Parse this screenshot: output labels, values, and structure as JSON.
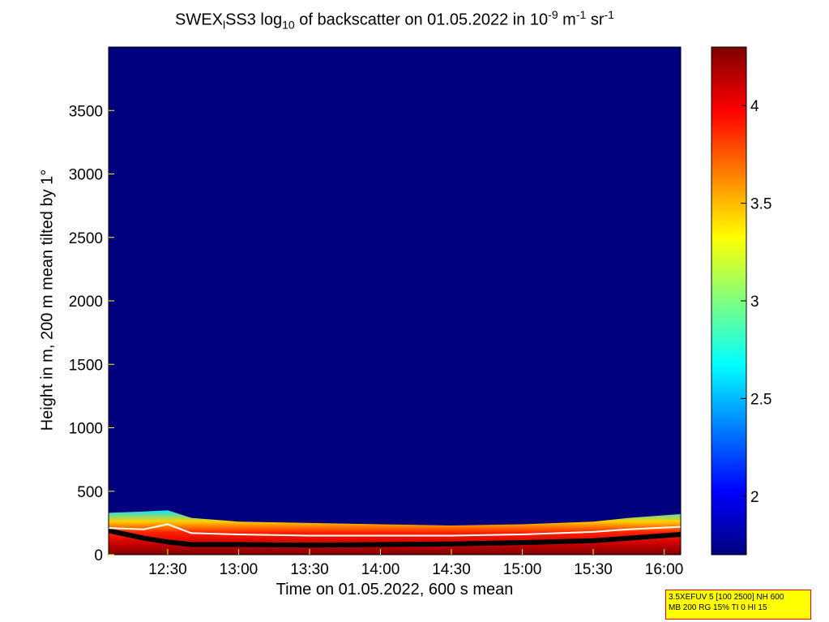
{
  "title": {
    "prefix": "SWEX",
    "sub1": "l",
    "part2": "SS3 log",
    "sub2": "10",
    "part3": " of backscatter on 01.05.2022 in 10",
    "sup1": "-9",
    "part4": " m",
    "sup2": "-1",
    "part5": " sr",
    "sup3": "-1"
  },
  "info_box": {
    "line1": "3.5XEFUV 5 [100 2500] NH 600",
    "line2": "MB 200 RG 15% TI 0 HI 15"
  },
  "colors": {
    "background": "#00007f",
    "border": "#ffff00"
  },
  "chart_data": {
    "type": "heatmap",
    "xlabel": "Time on 01.05.2022, 600 s mean",
    "ylabel": "Height in m, 200 m mean tilted by 1°",
    "x_range": [
      "12:05",
      "16:07"
    ],
    "x_ticks": [
      "12:30",
      "13:00",
      "13:30",
      "14:00",
      "14:30",
      "15:00",
      "15:30",
      "16:00"
    ],
    "ylim": [
      0,
      4000
    ],
    "y_ticks": [
      0,
      500,
      1000,
      1500,
      2000,
      2500,
      3000,
      3500
    ],
    "colorbar": {
      "range": [
        1.7,
        4.3
      ],
      "ticks": [
        2,
        2.5,
        3,
        3.5,
        4
      ],
      "tick_labels": [
        "2",
        "2.5",
        "3",
        "3.5",
        "4"
      ],
      "colormap": "jet"
    },
    "boundary_layer_top": {
      "times": [
        "12:05",
        "12:20",
        "12:30",
        "12:40",
        "13:00",
        "13:30",
        "14:00",
        "14:30",
        "15:00",
        "15:30",
        "15:45",
        "16:07"
      ],
      "heights": [
        330,
        340,
        350,
        290,
        260,
        250,
        240,
        230,
        240,
        260,
        290,
        320
      ]
    },
    "white_line": {
      "times": [
        "12:05",
        "12:20",
        "12:30",
        "12:40",
        "13:00",
        "13:30",
        "14:00",
        "14:30",
        "15:00",
        "15:30",
        "15:45",
        "16:07"
      ],
      "heights": [
        210,
        200,
        240,
        170,
        160,
        150,
        150,
        150,
        160,
        180,
        200,
        220
      ]
    },
    "dark_layer": {
      "times": [
        "12:05",
        "12:20",
        "12:30",
        "12:40",
        "13:00",
        "13:30",
        "14:00",
        "14:30",
        "15:00",
        "15:30",
        "15:45",
        "16:07"
      ],
      "heights": [
        190,
        130,
        100,
        80,
        80,
        75,
        80,
        85,
        95,
        110,
        130,
        160
      ]
    }
  }
}
